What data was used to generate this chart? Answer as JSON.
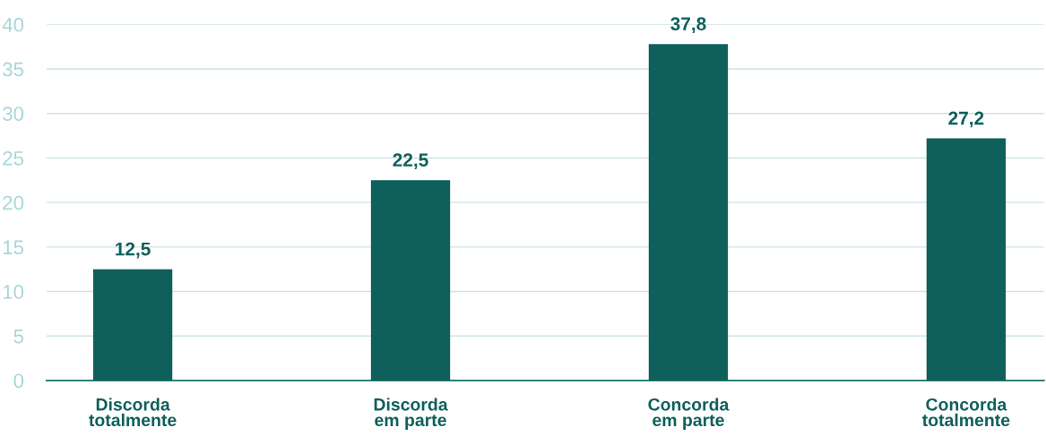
{
  "chart_data": {
    "type": "bar",
    "categories": [
      "Discorda\ntotalmente",
      "Discorda\nem parte",
      "Concorda\nem parte",
      "Concorda\ntotalmente"
    ],
    "values": [
      12.5,
      22.5,
      37.8,
      27.2
    ],
    "value_labels": [
      "12,5",
      "22,5",
      "37,8",
      "27,2"
    ],
    "color": "#0f5f5b",
    "ylim": [
      0,
      40
    ],
    "yticks": [
      0,
      5,
      10,
      15,
      20,
      25,
      30,
      35,
      40
    ],
    "grid": "y"
  }
}
